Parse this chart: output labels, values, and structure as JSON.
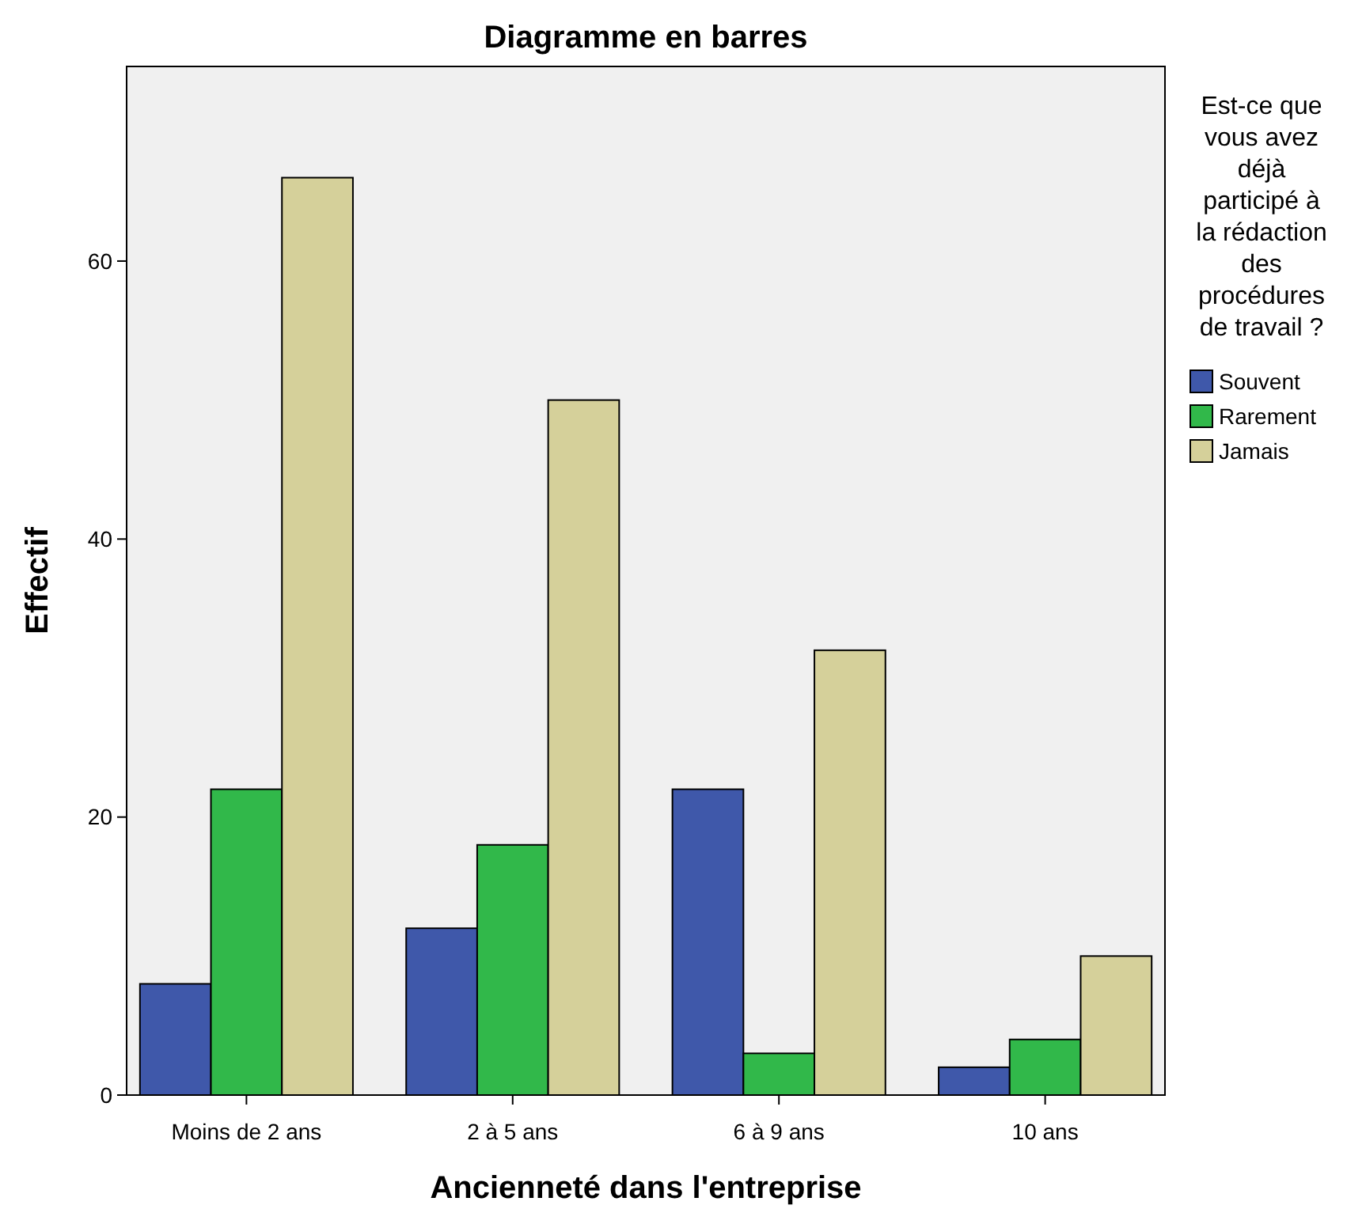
{
  "chart_data": {
    "type": "bar",
    "title": "Diagramme en barres",
    "xlabel": "Ancienneté dans l'entreprise",
    "ylabel": "Effectif",
    "legend_title": "Est-ce que vous avez déjà participé à la rédaction des procédures de travail ?",
    "categories": [
      "Moins de 2 ans",
      "2 à 5 ans",
      "6 à 9 ans",
      "10 ans"
    ],
    "series": [
      {
        "name": "Souvent",
        "color": "#3f58aa",
        "values": [
          8,
          12,
          22,
          2
        ]
      },
      {
        "name": "Rarement",
        "color": "#31b84a",
        "values": [
          22,
          18,
          3,
          4
        ]
      },
      {
        "name": "Jamais",
        "color": "#d5d09a",
        "values": [
          66,
          50,
          32,
          10
        ]
      }
    ],
    "ylim": [
      0,
      74
    ],
    "yticks": [
      0,
      20,
      40,
      60
    ],
    "grid": false,
    "legend": "right"
  }
}
